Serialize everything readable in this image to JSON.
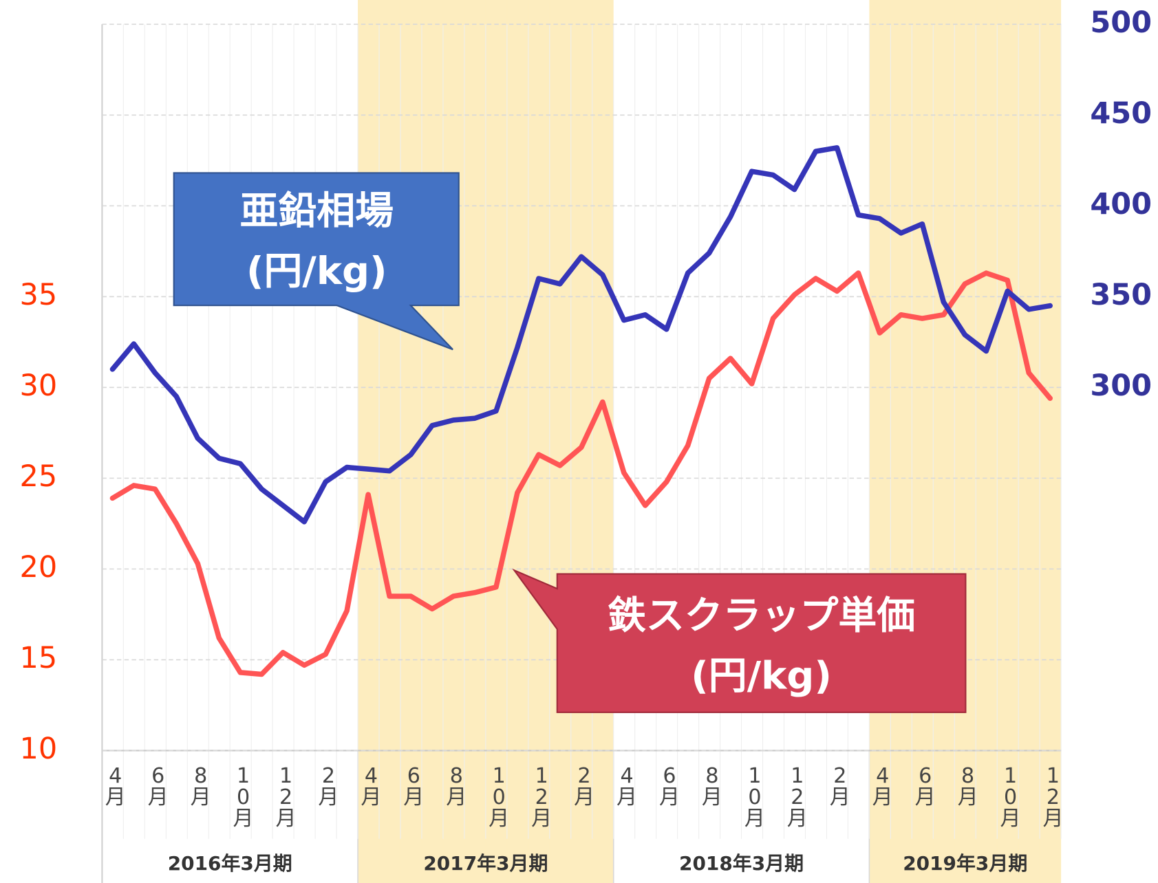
{
  "chart_data": {
    "type": "line",
    "categories": [
      "4月",
      null,
      "6月",
      null,
      "8月",
      null,
      "10月",
      null,
      "12月",
      null,
      "2月",
      null,
      "4月",
      null,
      "6月",
      null,
      "8月",
      null,
      "10月",
      null,
      "12月",
      null,
      "2月",
      null,
      "4月",
      null,
      "6月",
      null,
      "8月",
      null,
      "10月",
      null,
      "12月",
      null,
      "2月",
      null,
      "4月",
      null,
      "6月",
      null,
      "8月",
      null,
      "10月",
      null,
      "12月"
    ],
    "periods": [
      {
        "label": "2016年3月期",
        "months": 12
      },
      {
        "label": "2017年3月期",
        "months": 12
      },
      {
        "label": "2018年3月期",
        "months": 12
      },
      {
        "label": "2019年3月期",
        "months": 9
      }
    ],
    "series": [
      {
        "name": "亜鉛相場",
        "unit": "(円/kg)",
        "color": "#3535b8",
        "axis": "y2",
        "values": [
          310,
          324,
          308,
          295,
          272,
          261,
          258,
          244,
          235,
          226,
          248,
          256,
          255,
          254,
          263,
          279,
          282,
          283,
          287,
          322,
          360,
          357,
          372,
          362,
          337,
          340,
          332,
          363,
          374,
          394,
          419,
          417,
          409,
          430,
          432,
          395,
          393,
          385,
          390,
          347,
          329,
          320,
          353,
          343,
          345
        ]
      },
      {
        "name": "鉄スクラップ単価",
        "unit": "(円/kg)",
        "color": "#ff5555",
        "values": [
          23.9,
          24.6,
          24.4,
          22.5,
          20.3,
          16.2,
          14.3,
          14.2,
          15.4,
          14.7,
          15.3,
          17.7,
          24.1,
          18.5,
          18.5,
          17.8,
          18.5,
          18.7,
          19.0,
          24.2,
          26.3,
          25.7,
          26.7,
          29.2,
          25.3,
          23.5,
          24.8,
          26.8,
          30.5,
          31.6,
          30.2,
          33.8,
          35.1,
          36.0,
          35.3,
          36.3,
          33.0,
          34.0,
          33.8,
          34.0,
          35.7,
          36.3,
          35.9,
          30.8,
          29.4
        ]
      }
    ],
    "ylim": [
      10,
      50
    ],
    "yticks": [
      10,
      15,
      20,
      25,
      30,
      35
    ],
    "y2lim": [
      100,
      500
    ],
    "y2ticks": [
      300,
      350,
      400,
      450,
      500
    ],
    "grid": true
  }
}
